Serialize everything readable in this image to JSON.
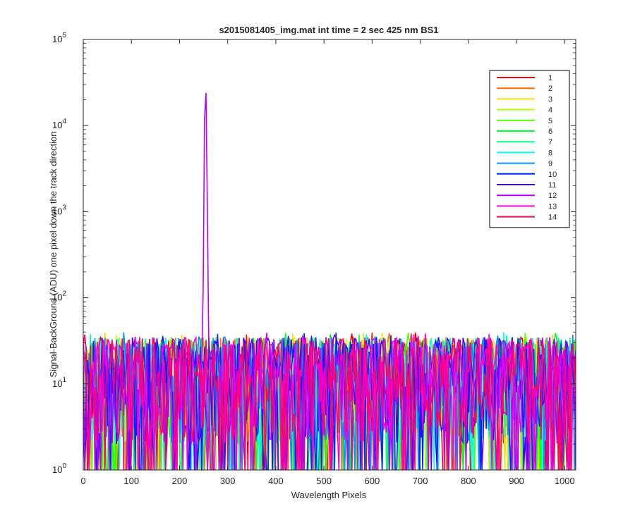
{
  "chart_data": {
    "type": "line",
    "title": "s2015081405_img.mat int time = 2 sec  425 nm BS1",
    "xlabel": "Wavelength Pixels",
    "ylabel": "Signal-BackGround (ADU) one pixel down the track direction",
    "xlim": [
      0,
      1023
    ],
    "ylim": [
      1,
      100000
    ],
    "yscale": "log",
    "grid": false,
    "legend_position": "top-right",
    "x_ticks": [
      "0",
      "100",
      "200",
      "300",
      "400",
      "500",
      "600",
      "700",
      "800",
      "900",
      "1000"
    ],
    "x_tick_values": [
      0,
      100,
      200,
      300,
      400,
      500,
      600,
      700,
      800,
      900,
      1000
    ],
    "y_tick_values": [
      1,
      10,
      100,
      1000,
      10000,
      100000
    ],
    "y_tick_base": "10",
    "y_tick_exponents": [
      "0",
      "1",
      "2",
      "3",
      "4",
      "5"
    ],
    "description_of_data": "14 noisy series fluctuating between 1 and ~40 ADU across all 1024 pixels; series 12 has a sharp peak of ~30000 ADU near pixel 254.",
    "peak": {
      "series": "12",
      "x": 254,
      "y": 30000
    },
    "noise_range": [
      1,
      40
    ],
    "series": [
      {
        "name": "1",
        "color": "#ff0000"
      },
      {
        "name": "2",
        "color": "#ff6e00"
      },
      {
        "name": "3",
        "color": "#ffdc00"
      },
      {
        "name": "4",
        "color": "#b9ff00"
      },
      {
        "name": "5",
        "color": "#4cff00"
      },
      {
        "name": "6",
        "color": "#00ff22"
      },
      {
        "name": "7",
        "color": "#00ff90"
      },
      {
        "name": "8",
        "color": "#00fffc"
      },
      {
        "name": "9",
        "color": "#0093ff"
      },
      {
        "name": "10",
        "color": "#0025ff"
      },
      {
        "name": "11",
        "color": "#4800ff"
      },
      {
        "name": "12",
        "color": "#b600ff"
      },
      {
        "name": "13",
        "color": "#ff00d8"
      },
      {
        "name": "14",
        "color": "#ff006a"
      }
    ]
  }
}
